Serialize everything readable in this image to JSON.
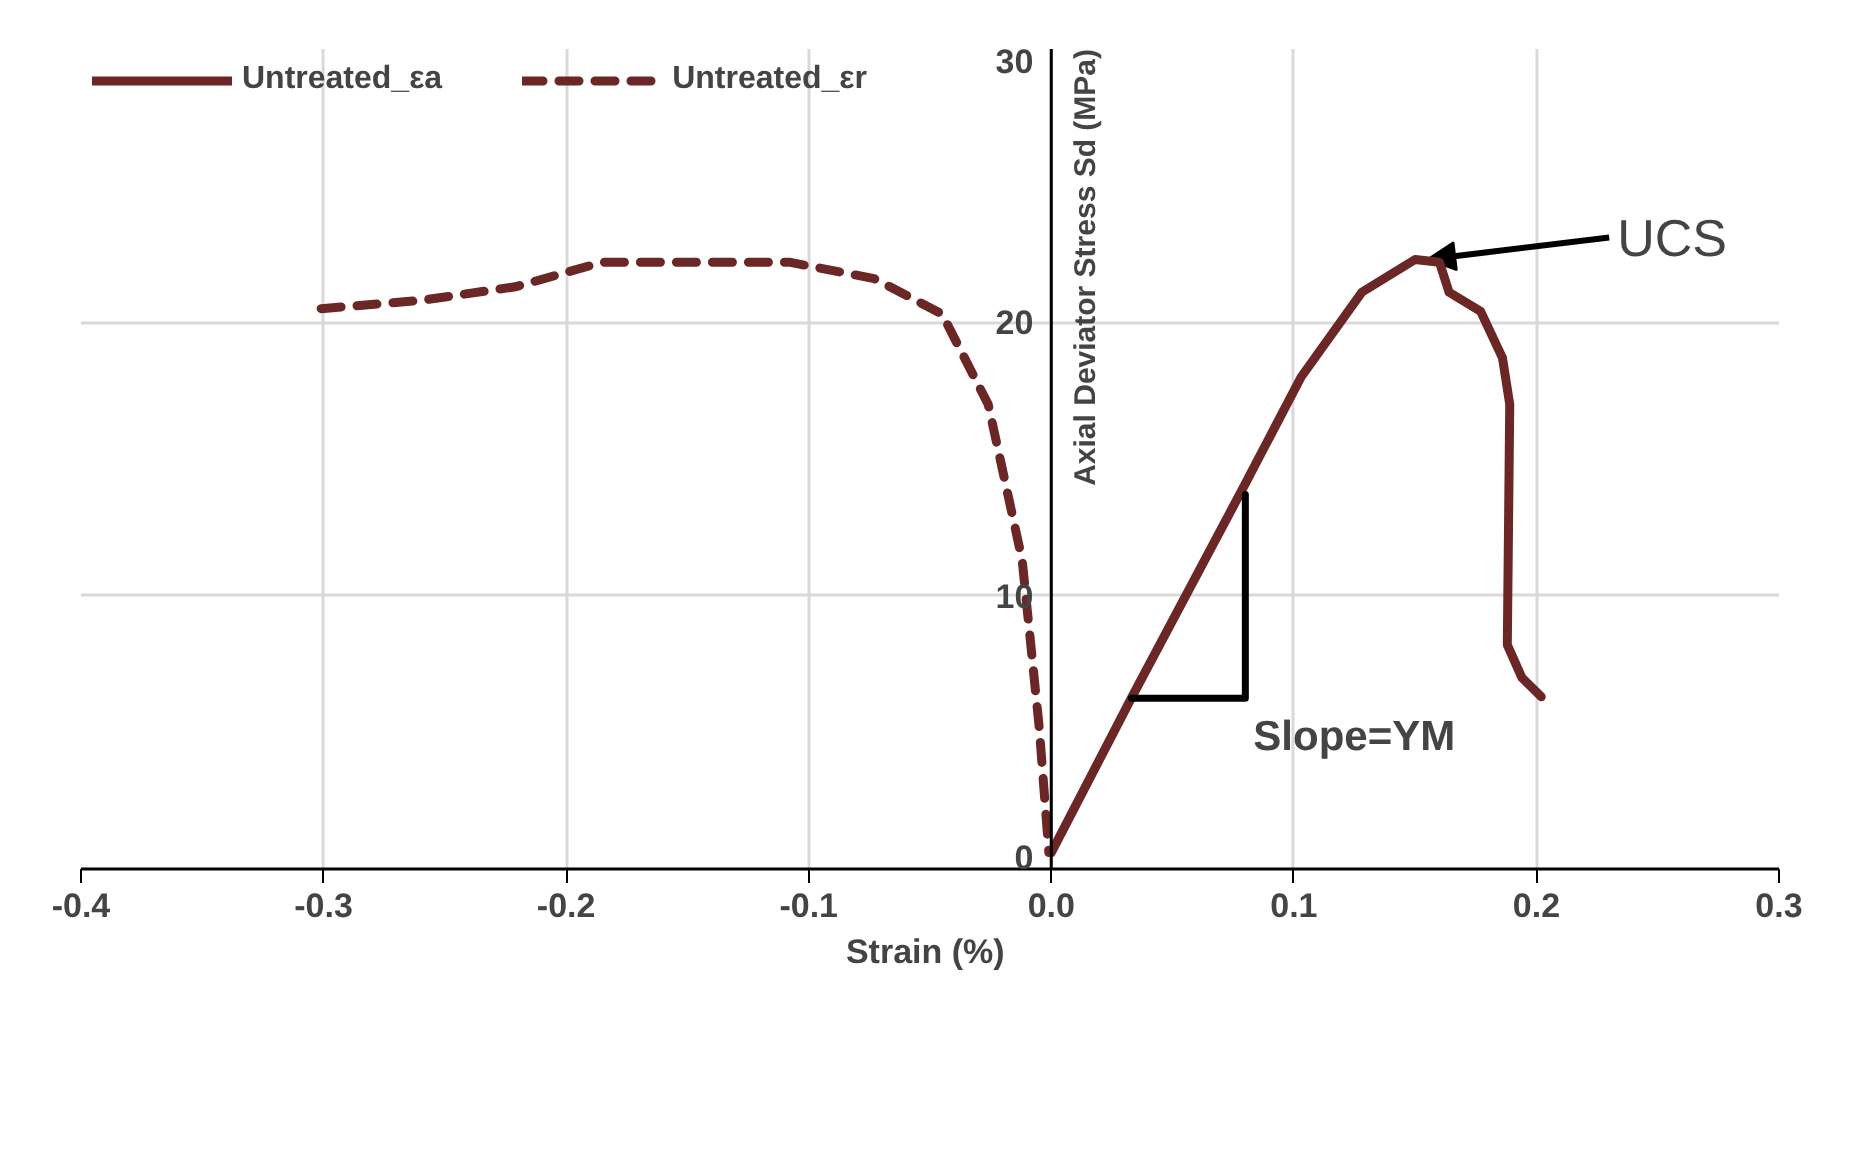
{
  "chart_data": {
    "type": "line",
    "xlabel": "Strain  (%)",
    "ylabel": "Axial Deviator Stress Sd (MPa)",
    "xlim": [
      -0.4,
      0.3
    ],
    "ylim": [
      0,
      30
    ],
    "xticks": [
      {
        "value": -0.4,
        "label": "-0.4"
      },
      {
        "value": -0.3,
        "label": "-0.3"
      },
      {
        "value": -0.2,
        "label": "-0.2"
      },
      {
        "value": -0.1,
        "label": "-0.1"
      },
      {
        "value": 0,
        "label": "0.0"
      },
      {
        "value": 0.1,
        "label": "0.1"
      },
      {
        "value": 0.2,
        "label": "0.2"
      },
      {
        "value": 0.3,
        "label": "0.3"
      }
    ],
    "yticks": [
      0,
      10,
      20,
      30
    ],
    "grid": true,
    "legend": "top left",
    "series": [
      {
        "name": "Untreated_εa",
        "color": "#6b2626",
        "line_style": "solid",
        "x": [
          0,
          0.033,
          0.08,
          0.103,
          0.128,
          0.15,
          0.16,
          0.164,
          0.177,
          0.186,
          0.189,
          0.188,
          0.194,
          0.202
        ],
        "values": [
          0.6,
          6.25,
          14.1,
          18.0,
          21.1,
          22.3,
          22.2,
          21.1,
          20.4,
          18.7,
          17.0,
          8.2,
          7.0,
          6.3
        ]
      },
      {
        "name": "Untreated_εr",
        "color": "#6b2626",
        "line_style": "dashed",
        "x": [
          -0.301,
          -0.26,
          -0.221,
          -0.185,
          -0.147,
          -0.108,
          -0.073,
          -0.045,
          -0.026,
          -0.012,
          -0.005,
          -0.001
        ],
        "values": [
          20.5,
          20.8,
          21.3,
          22.2,
          22.2,
          22.2,
          21.6,
          20.3,
          17.0,
          11.3,
          5.2,
          0.6
        ]
      },
      {
        "color": "#000000",
        "line_style": "solid",
        "x": [
          0.033,
          0.08,
          0.08
        ],
        "values": [
          6.25,
          6.25,
          13.7
        ]
      }
    ],
    "annotations": [
      {
        "text": "UCS",
        "x": 0.155,
        "y": 22.3
      },
      {
        "text": "Slope=YM",
        "x": 0.08,
        "y": 6.25
      }
    ]
  }
}
